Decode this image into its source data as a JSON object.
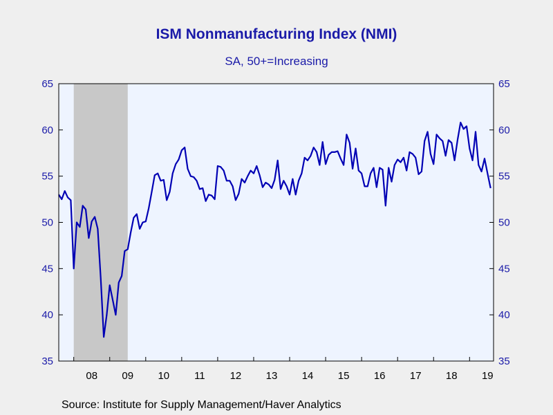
{
  "chart_data": {
    "type": "line",
    "title": "ISM Nonmanufacturing Index (NMI)",
    "subtitle": "SA, 50+=Increasing",
    "source": "Source:  Institute for Supply Management/Haver Analytics",
    "ylim": [
      35,
      65
    ],
    "yticks": [
      35,
      40,
      45,
      50,
      55,
      60,
      65
    ],
    "xlim": [
      "2007-08",
      "2019-09"
    ],
    "xtick_labels": [
      "08",
      "09",
      "10",
      "11",
      "12",
      "13",
      "14",
      "15",
      "16",
      "17",
      "18",
      "19"
    ],
    "recession": {
      "start": "2008-01",
      "end": "2009-06"
    },
    "grid": false,
    "colors": {
      "line": "#0000b4",
      "text": "#1a1aa8",
      "plot_bg": "#eef4ff",
      "recession": "#c8c8c8",
      "page_bg": "#efefef"
    },
    "series": [
      {
        "start": "2007-08",
        "values": [
          53.0,
          52.5,
          53.4,
          52.7,
          52.4,
          45.0,
          50.0,
          49.5,
          51.8,
          51.4,
          48.3,
          50.1,
          50.6,
          49.3,
          44.0,
          37.6,
          40.0,
          43.2,
          41.6,
          40.0,
          43.5,
          44.2,
          46.9,
          47.1,
          48.9,
          50.5,
          50.9,
          49.3,
          50.0,
          50.1,
          51.5,
          53.3,
          55.1,
          55.3,
          54.5,
          54.6,
          52.4,
          53.3,
          55.3,
          56.3,
          56.8,
          57.8,
          58.1,
          55.8,
          55.0,
          54.9,
          54.5,
          53.6,
          53.7,
          52.3,
          53.0,
          52.9,
          52.5,
          56.1,
          56.0,
          55.6,
          54.5,
          54.5,
          53.9,
          52.4,
          53.1,
          54.7,
          54.3,
          55.0,
          55.6,
          55.3,
          56.1,
          55.1,
          53.8,
          54.3,
          54.1,
          53.7,
          54.6,
          56.7,
          53.6,
          54.5,
          53.9,
          53.0,
          54.7,
          53.0,
          54.5,
          55.3,
          57.0,
          56.7,
          57.2,
          58.1,
          57.6,
          56.2,
          58.7,
          56.3,
          57.3,
          57.6,
          57.6,
          57.7,
          56.9,
          56.2,
          59.5,
          58.6,
          55.8,
          58.0,
          55.6,
          55.3,
          53.9,
          53.9,
          55.3,
          55.9,
          53.8,
          55.9,
          55.7,
          51.8,
          55.9,
          54.4,
          56.2,
          56.8,
          56.5,
          57.0,
          55.6,
          57.6,
          57.4,
          57.0,
          55.2,
          55.5,
          58.8,
          59.8,
          57.4,
          56.3,
          59.5,
          59.1,
          58.8,
          57.2,
          58.9,
          58.6,
          56.7,
          58.9,
          60.8,
          60.1,
          60.4,
          58.0,
          56.7,
          59.8,
          56.2,
          55.5,
          56.9,
          55.3,
          53.7
        ]
      }
    ]
  }
}
